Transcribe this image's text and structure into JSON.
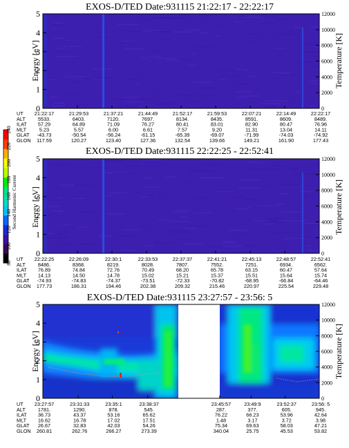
{
  "chart_data": {
    "type": "heatmap",
    "colorbar": {
      "label": "Second Harmonic Current",
      "ticks": [
        "80",
        "100",
        "120",
        "140",
        "160",
        "180",
        "200",
        "220",
        "240"
      ],
      "colors": [
        "#000000",
        "#3a0a52",
        "#3d0fa8",
        "#1a2bd8",
        "#0a66ff",
        "#00c6ff",
        "#00e0c0",
        "#00e38a",
        "#00f000",
        "#b8ff00",
        "#ffff00",
        "#ffb000",
        "#ff4000",
        "#ff0000"
      ]
    },
    "panels": [
      {
        "title": "EXOS-D/TED    Date:931115  21:22:17 - 22:22:17",
        "ylabel": "Energy [eV]",
        "y2label": "Temperature [K]",
        "yticks": [
          "0",
          "1",
          "2",
          "3",
          "4",
          "5"
        ],
        "y2ticks": [
          "0",
          "2000",
          "4000",
          "6000",
          "8000",
          "10000",
          "12000"
        ],
        "ylim": [
          0,
          5
        ],
        "y2lim": [
          0,
          12000
        ],
        "dominant_color": "#3d1fb0",
        "ephemeris": {
          "labels": [
            "UT",
            "ALT",
            "ILAT",
            "MLT",
            "GLAT",
            "GLON"
          ],
          "columns": [
            [
              "21:22:17",
              "5533.",
              "57.29",
              "5.23",
              "-43.73",
              "117.59"
            ],
            [
              "21:29:53",
              "6403.",
              "64.89",
              "5.57",
              "-50.54",
              "120.27"
            ],
            [
              "21:37:21",
              "7120.",
              "71.09",
              "6.00",
              "-56.24",
              "123.40"
            ],
            [
              "21:44:49",
              "7697.",
              "76.27",
              "6.61",
              "-61.15",
              "127.36"
            ],
            [
              "21:52:17",
              "8134.",
              "80.41",
              "7.57",
              "-65.39",
              "132.54"
            ],
            [
              "21:59:53",
              "8435.",
              "83.01",
              "9.20",
              "-69.07",
              "139.66"
            ],
            [
              "22:07:21",
              "8591.",
              "82.90",
              "11.31",
              "-71.99",
              "149.21"
            ],
            [
              "22:14:49",
              "8609.",
              "80.47",
              "13.04",
              "-74.03",
              "161.90"
            ],
            [
              "22:22:17",
              "8489.",
              "76.96",
              "14.11",
              "-74.92",
              "177.43"
            ]
          ]
        }
      },
      {
        "title": "EXOS-D/TED    Date:931115  22:22:25 - 22:52:41",
        "ylabel": "Energy [eV]",
        "y2label": "Temperature [K]",
        "yticks": [
          "0",
          "1",
          "2",
          "3",
          "4",
          "5"
        ],
        "y2ticks": [
          "0",
          "2000",
          "4000",
          "6000",
          "8000",
          "10000",
          "12000"
        ],
        "ylim": [
          0,
          5
        ],
        "y2lim": [
          0,
          12000
        ],
        "dominant_color": "#3d1fb0",
        "ephemeris": {
          "labels": [
            "UT",
            "ALT",
            "ILAT",
            "MLT",
            "GLAT",
            "GLON"
          ],
          "columns": [
            [
              "22:22:25",
              "8486.",
              "76.89",
              "14.13",
              "-74.93",
              "177.73"
            ],
            [
              "22:26:09",
              "8368.",
              "74.84",
              "14.50",
              "-74.83",
              "186.31"
            ],
            [
              "22:30:1",
              "8219.",
              "72.76",
              "14.78",
              "-74.37",
              "194.46"
            ],
            [
              "22:33:53",
              "8028.",
              "70.49",
              "15.02",
              "-73.51",
              "202.38"
            ],
            [
              "22:37:37",
              "7807.",
              "68.20",
              "15.21",
              "-72.33",
              "209.32"
            ],
            [
              "22:41:21",
              "7552.",
              "65.78",
              "15.37",
              "-70.82",
              "215.46"
            ],
            [
              "22:45:13",
              "7251.",
              "63.15",
              "15.51",
              "-68.95",
              "220.97"
            ],
            [
              "22:48:57",
              "6934.",
              "60.47",
              "15.64",
              "-66.84",
              "225.54"
            ],
            [
              "22:52:41",
              "6562.",
              "57.64",
              "15.74",
              "-64.46",
              "229.48"
            ]
          ]
        }
      },
      {
        "title": "EXOS-D/TED    Date:931115  23:27:57 - 23:56: 5",
        "ylabel": "Energy [eV]",
        "y2label": "Temperature [K]",
        "yticks": [
          "0",
          "1",
          "2",
          "3",
          "4",
          "5"
        ],
        "y2ticks": [
          "0",
          "2000",
          "4000",
          "6000",
          "8000",
          "10000",
          "12000"
        ],
        "ylim": [
          0,
          5
        ],
        "y2lim": [
          0,
          12000
        ],
        "data_gap": [
          "23:38:37",
          "23:45:57"
        ],
        "ephemeris": {
          "labels": [
            "UT",
            "ALT",
            "ILAT",
            "MLT",
            "GLAT",
            "GLON"
          ],
          "columns": [
            [
              "23:27:57",
              "1781.",
              "36.73",
              "16.62",
              "26.67",
              "260.81"
            ],
            [
              "23:31:33",
              "1290.",
              "43.37",
              "16.78",
              "32.83",
              "262.76"
            ],
            [
              "23:35:1",
              "878.",
              "53.16",
              "17.02",
              "42.03",
              "266.27"
            ],
            [
              "23:38:37",
              "545.",
              "65.62",
              "17.51",
              "54.26",
              "273.39"
            ],
            [
              "23:45:57",
              "287.",
              "76.22",
              "1.48",
              "75.34",
              "340.04"
            ],
            [
              "23:49:9",
              "377.",
              "66.23",
              "3.17",
              "69.63",
              "25.75"
            ],
            [
              "23:52:37",
              "605.",
              "53.96",
              "3.72",
              "58.03",
              "45.53"
            ],
            [
              "23:56: 5",
              "945.",
              "42.64",
              "3.98",
              "47.21",
              "53.82"
            ]
          ]
        }
      }
    ]
  }
}
